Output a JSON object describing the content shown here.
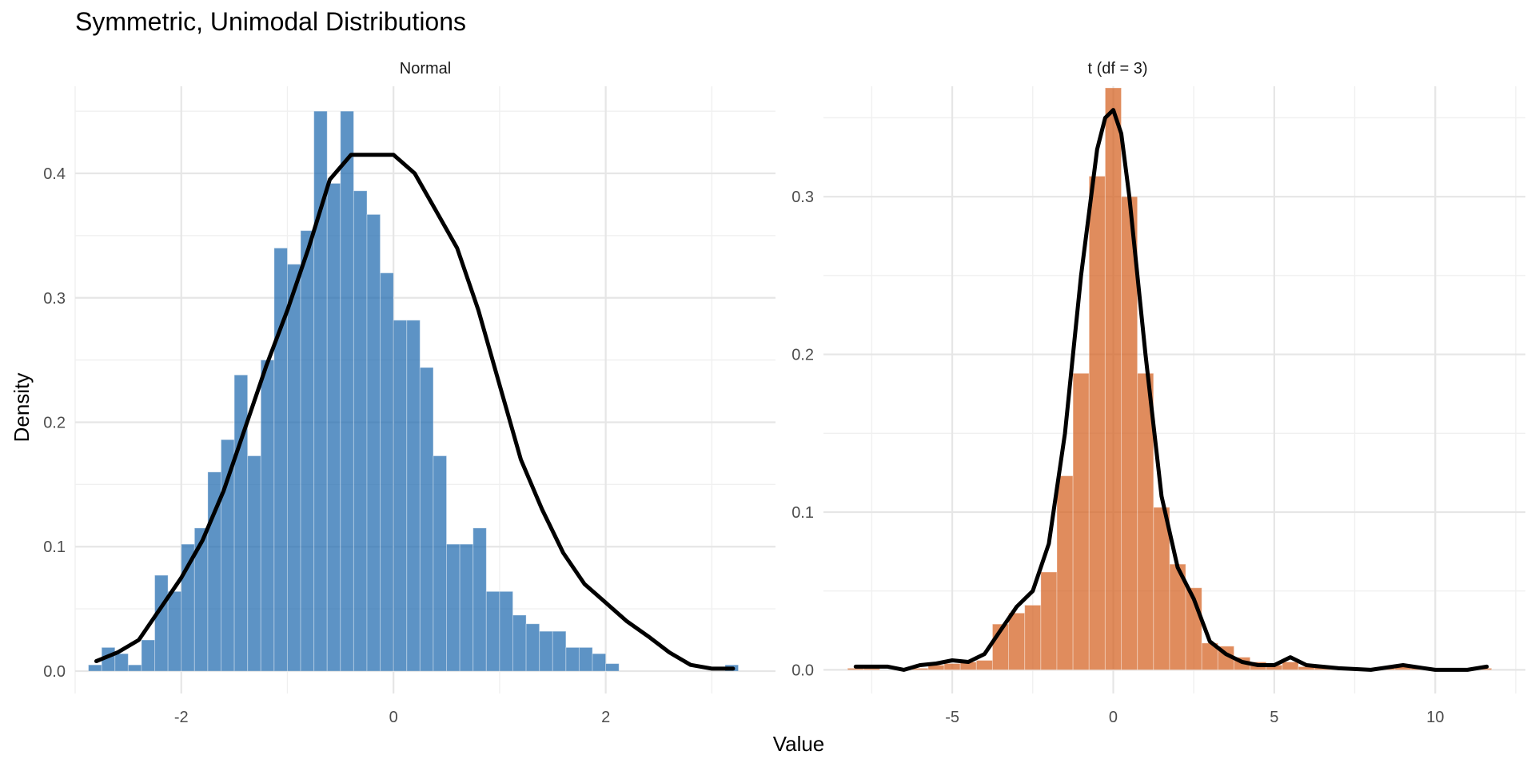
{
  "title": "Symmetric, Unimodal Distributions",
  "xlabel": "Value",
  "ylabel": "Density",
  "chart_data": [
    {
      "type": "histogram+density",
      "panel": "Normal",
      "color": "#1F6AAE",
      "xlim": [
        -3.0,
        3.6
      ],
      "ylim": [
        -0.018,
        0.47
      ],
      "x_ticks": [
        -2,
        0,
        2
      ],
      "y_ticks": [
        0.0,
        0.1,
        0.2,
        0.3,
        0.4
      ],
      "bin_width": 0.125,
      "bins": [
        {
          "x0": -2.875,
          "y": 0.005
        },
        {
          "x0": -2.75,
          "y": 0.019
        },
        {
          "x0": -2.625,
          "y": 0.014
        },
        {
          "x0": -2.5,
          "y": 0.005
        },
        {
          "x0": -2.375,
          "y": 0.025
        },
        {
          "x0": -2.25,
          "y": 0.077
        },
        {
          "x0": -2.125,
          "y": 0.064
        },
        {
          "x0": -2.0,
          "y": 0.102
        },
        {
          "x0": -1.875,
          "y": 0.115
        },
        {
          "x0": -1.75,
          "y": 0.16
        },
        {
          "x0": -1.625,
          "y": 0.186
        },
        {
          "x0": -1.5,
          "y": 0.238
        },
        {
          "x0": -1.375,
          "y": 0.173
        },
        {
          "x0": -1.25,
          "y": 0.25
        },
        {
          "x0": -1.125,
          "y": 0.34
        },
        {
          "x0": -1.0,
          "y": 0.327
        },
        {
          "x0": -0.875,
          "y": 0.354
        },
        {
          "x0": -0.75,
          "y": 0.45
        },
        {
          "x0": -0.625,
          "y": 0.392
        },
        {
          "x0": -0.5,
          "y": 0.45
        },
        {
          "x0": -0.375,
          "y": 0.386
        },
        {
          "x0": -0.25,
          "y": 0.367
        },
        {
          "x0": -0.125,
          "y": 0.32
        },
        {
          "x0": 0.0,
          "y": 0.282
        },
        {
          "x0": 0.125,
          "y": 0.282
        },
        {
          "x0": 0.25,
          "y": 0.244
        },
        {
          "x0": 0.375,
          "y": 0.173
        },
        {
          "x0": 0.5,
          "y": 0.102
        },
        {
          "x0": 0.625,
          "y": 0.102
        },
        {
          "x0": 0.75,
          "y": 0.115
        },
        {
          "x0": 0.875,
          "y": 0.064
        },
        {
          "x0": 1.0,
          "y": 0.064
        },
        {
          "x0": 1.125,
          "y": 0.045
        },
        {
          "x0": 1.25,
          "y": 0.038
        },
        {
          "x0": 1.375,
          "y": 0.032
        },
        {
          "x0": 1.5,
          "y": 0.032
        },
        {
          "x0": 1.625,
          "y": 0.019
        },
        {
          "x0": 1.75,
          "y": 0.019
        },
        {
          "x0": 1.875,
          "y": 0.014
        },
        {
          "x0": 2.0,
          "y": 0.006
        },
        {
          "x0": 2.125,
          "y": 0.0
        },
        {
          "x0": 2.25,
          "y": 0.0
        },
        {
          "x0": 2.375,
          "y": 0.0
        },
        {
          "x0": 2.5,
          "y": 0.0
        },
        {
          "x0": 2.625,
          "y": 0.0
        },
        {
          "x0": 2.75,
          "y": 0.0
        },
        {
          "x0": 2.875,
          "y": 0.0
        },
        {
          "x0": 3.0,
          "y": 0.0
        },
        {
          "x0": 3.125,
          "y": 0.005
        }
      ],
      "density": {
        "x": [
          -2.8,
          -2.6,
          -2.4,
          -2.2,
          -2.0,
          -1.8,
          -1.6,
          -1.4,
          -1.2,
          -1.0,
          -0.8,
          -0.6,
          -0.4,
          -0.2,
          0.0,
          0.2,
          0.4,
          0.6,
          0.8,
          1.0,
          1.2,
          1.4,
          1.6,
          1.8,
          2.0,
          2.2,
          2.4,
          2.6,
          2.8,
          3.0,
          3.2
        ],
        "y": [
          0.008,
          0.015,
          0.025,
          0.05,
          0.075,
          0.105,
          0.145,
          0.195,
          0.245,
          0.29,
          0.34,
          0.395,
          0.415,
          0.415,
          0.415,
          0.4,
          0.37,
          0.34,
          0.29,
          0.23,
          0.17,
          0.13,
          0.095,
          0.07,
          0.055,
          0.04,
          0.028,
          0.015,
          0.005,
          0.002,
          0.002
        ]
      }
    },
    {
      "type": "histogram+density",
      "panel": "t (df = 3)",
      "color": "#D45F1E",
      "xlim": [
        -9.0,
        12.8
      ],
      "ylim": [
        -0.015,
        0.37
      ],
      "x_ticks": [
        -5,
        0,
        5,
        10
      ],
      "y_ticks": [
        0.0,
        0.1,
        0.2,
        0.3
      ],
      "bin_width": 0.5,
      "bins": [
        {
          "x0": -8.25,
          "y": 0.001
        },
        {
          "x0": -7.75,
          "y": 0.001
        },
        {
          "x0": -7.25,
          "y": 0.0
        },
        {
          "x0": -6.75,
          "y": 0.001
        },
        {
          "x0": -6.25,
          "y": 0.001
        },
        {
          "x0": -5.75,
          "y": 0.003
        },
        {
          "x0": -5.25,
          "y": 0.004
        },
        {
          "x0": -4.75,
          "y": 0.005
        },
        {
          "x0": -4.25,
          "y": 0.006
        },
        {
          "x0": -3.75,
          "y": 0.029
        },
        {
          "x0": -3.25,
          "y": 0.036
        },
        {
          "x0": -2.75,
          "y": 0.041
        },
        {
          "x0": -2.25,
          "y": 0.062
        },
        {
          "x0": -1.75,
          "y": 0.123
        },
        {
          "x0": -1.25,
          "y": 0.188
        },
        {
          "x0": -0.75,
          "y": 0.313
        },
        {
          "x0": -0.25,
          "y": 0.369
        },
        {
          "x0": 0.25,
          "y": 0.3
        },
        {
          "x0": 0.75,
          "y": 0.188
        },
        {
          "x0": 1.25,
          "y": 0.103
        },
        {
          "x0": 1.75,
          "y": 0.067
        },
        {
          "x0": 2.25,
          "y": 0.052
        },
        {
          "x0": 2.75,
          "y": 0.017
        },
        {
          "x0": 3.25,
          "y": 0.015
        },
        {
          "x0": 3.75,
          "y": 0.008
        },
        {
          "x0": 4.25,
          "y": 0.005
        },
        {
          "x0": 4.75,
          "y": 0.003
        },
        {
          "x0": 5.25,
          "y": 0.005
        },
        {
          "x0": 5.75,
          "y": 0.002
        },
        {
          "x0": 6.25,
          "y": 0.002
        },
        {
          "x0": 6.75,
          "y": 0.001
        },
        {
          "x0": 7.25,
          "y": 0.001
        },
        {
          "x0": 7.75,
          "y": 0.001
        },
        {
          "x0": 8.25,
          "y": 0.001
        },
        {
          "x0": 8.75,
          "y": 0.002
        },
        {
          "x0": 9.25,
          "y": 0.001
        },
        {
          "x0": 9.75,
          "y": 0.001
        },
        {
          "x0": 10.25,
          "y": 0.0
        },
        {
          "x0": 10.75,
          "y": 0.0
        },
        {
          "x0": 11.25,
          "y": 0.001
        }
      ],
      "density": {
        "x": [
          -8.0,
          -7.0,
          -6.5,
          -6.0,
          -5.5,
          -5.0,
          -4.5,
          -4.0,
          -3.5,
          -3.0,
          -2.5,
          -2.0,
          -1.5,
          -1.0,
          -0.5,
          -0.25,
          0.0,
          0.25,
          0.5,
          1.0,
          1.5,
          2.0,
          2.5,
          3.0,
          3.5,
          4.0,
          4.5,
          5.0,
          5.5,
          6.0,
          7.0,
          8.0,
          9.0,
          10.0,
          11.0,
          11.6
        ],
        "y": [
          0.002,
          0.002,
          0.0,
          0.003,
          0.004,
          0.006,
          0.005,
          0.01,
          0.025,
          0.04,
          0.05,
          0.08,
          0.15,
          0.25,
          0.33,
          0.35,
          0.355,
          0.34,
          0.3,
          0.2,
          0.11,
          0.065,
          0.045,
          0.018,
          0.01,
          0.005,
          0.003,
          0.003,
          0.008,
          0.003,
          0.001,
          0.0,
          0.003,
          0.0,
          0.0,
          0.002
        ]
      }
    }
  ]
}
